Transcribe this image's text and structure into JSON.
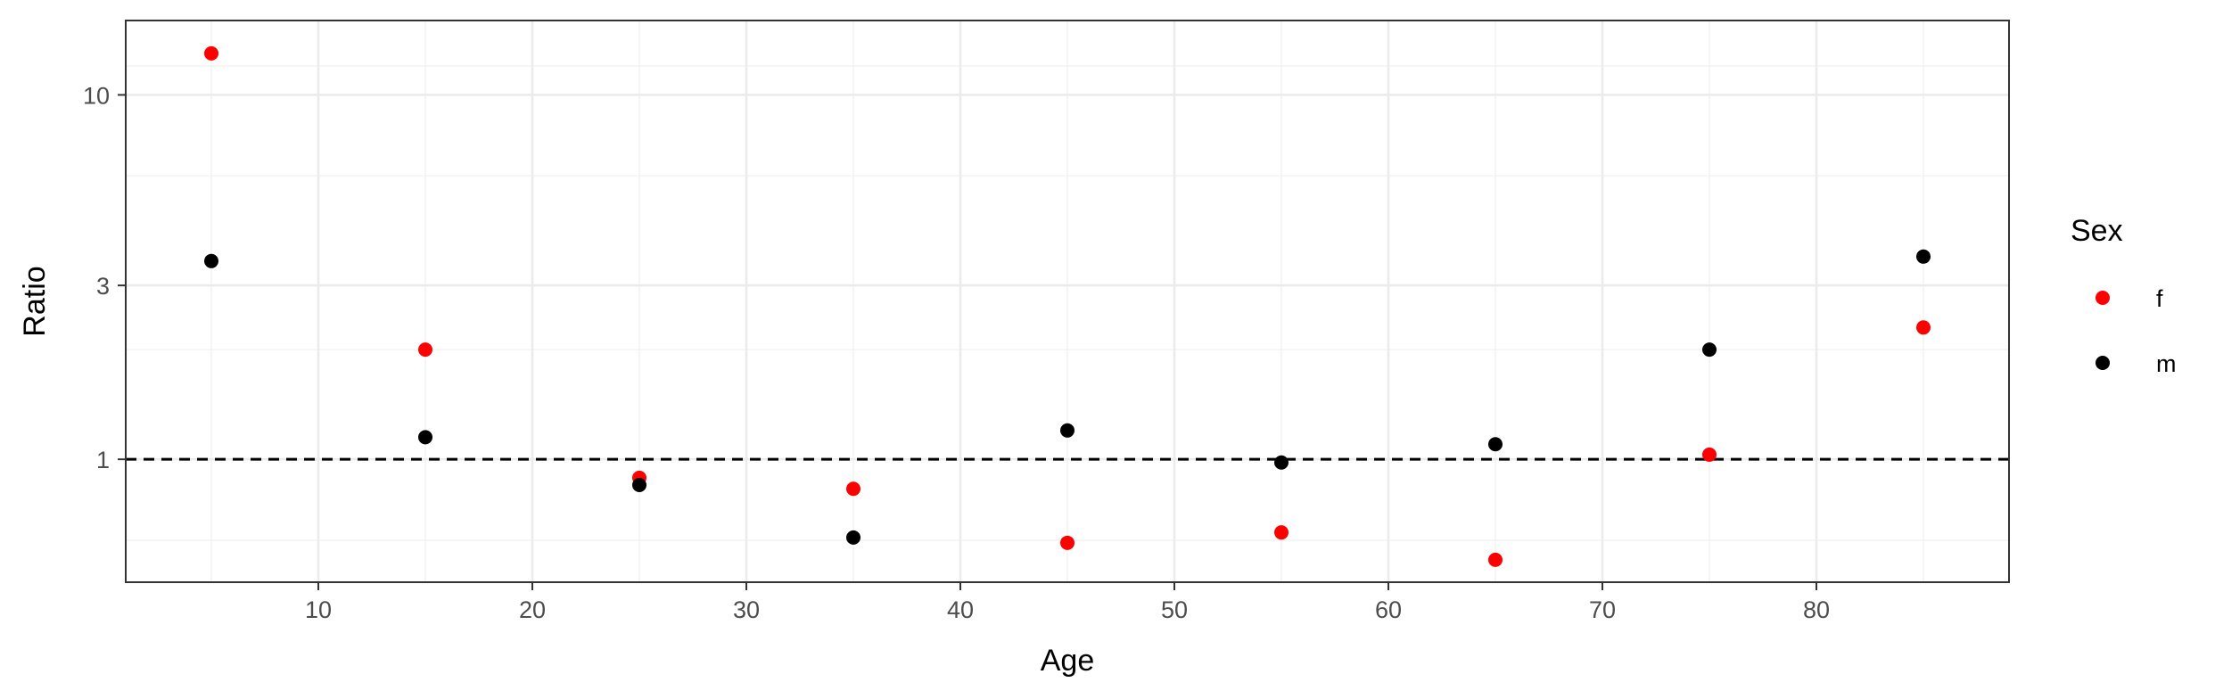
{
  "chart_data": {
    "type": "scatter",
    "title": "",
    "xlabel": "Age",
    "ylabel": "Ratio",
    "xlim": [
      1,
      89
    ],
    "ylim": [
      0.46,
      16
    ],
    "y_scale": "log",
    "x_ticks": [
      10,
      20,
      30,
      40,
      50,
      60,
      70,
      80
    ],
    "y_ticks": [
      1,
      3,
      10
    ],
    "y_tick_labels": [
      "1",
      "3",
      "10"
    ],
    "y_minor_ticks": [
      0.6,
      2,
      6,
      12
    ],
    "grid": true,
    "reference_line": {
      "y": 1,
      "style": "dashed",
      "color": "#000000"
    },
    "legend": {
      "title": "Sex",
      "placement": "right"
    },
    "series": [
      {
        "name": "f",
        "color": "#ff0000",
        "x": [
          5,
          15,
          25,
          35,
          45,
          55,
          65,
          75,
          85
        ],
        "y": [
          13,
          2.0,
          0.89,
          0.83,
          0.59,
          0.63,
          0.53,
          1.03,
          2.3
        ]
      },
      {
        "name": "m",
        "color": "#000000",
        "x": [
          5,
          15,
          25,
          35,
          45,
          55,
          65,
          75,
          85
        ],
        "y": [
          3.5,
          1.15,
          0.85,
          0.61,
          1.2,
          0.98,
          1.1,
          2.0,
          3.6
        ]
      }
    ]
  }
}
